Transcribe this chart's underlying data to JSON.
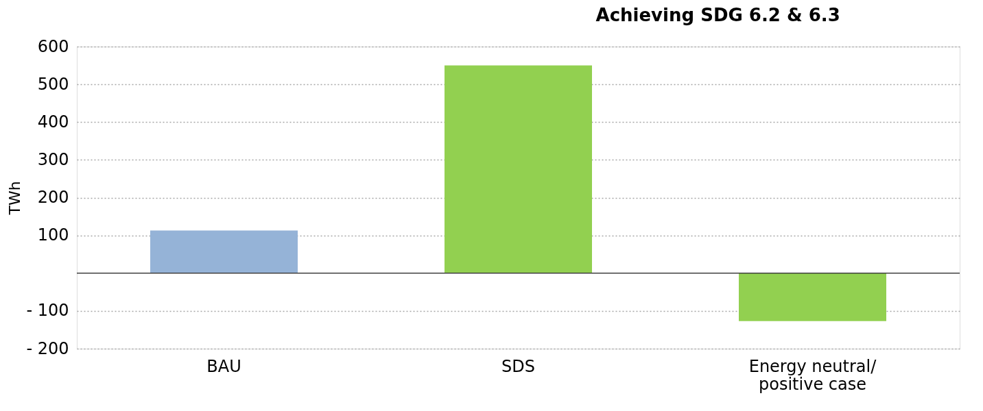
{
  "chart_data": {
    "type": "bar",
    "title": "Achieving SDG 6.2 & 6.3",
    "ylabel": "TWh",
    "categories": [
      "BAU",
      "SDS",
      "Energy neutral/\npositive case"
    ],
    "values": [
      113,
      550,
      -127
    ],
    "colors": [
      "#95b3d7",
      "#92d050",
      "#92d050"
    ],
    "ylim": [
      -200,
      600
    ],
    "yticks": [
      {
        "value": -200,
        "label": "- 200"
      },
      {
        "value": -100,
        "label": "- 100"
      },
      100,
      200,
      300,
      400,
      500,
      600
    ],
    "grid": "y"
  }
}
